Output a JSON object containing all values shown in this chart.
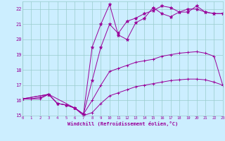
{
  "xlabel": "Windchill (Refroidissement éolien,°C)",
  "bg_color": "#cceeff",
  "grid_color": "#99cccc",
  "line_color": "#990099",
  "x_min": 0,
  "x_max": 23,
  "y_min": 15,
  "y_max": 22.5,
  "yticks": [
    15,
    16,
    17,
    18,
    19,
    20,
    21,
    22
  ],
  "xticks": [
    0,
    1,
    2,
    3,
    4,
    5,
    6,
    7,
    8,
    9,
    10,
    11,
    12,
    13,
    14,
    15,
    16,
    17,
    18,
    19,
    20,
    21,
    22,
    23
  ],
  "series1_x": [
    0,
    1,
    2,
    3,
    4,
    5,
    6,
    7,
    8,
    9,
    10,
    11,
    12,
    13,
    14,
    15,
    16,
    17,
    18,
    19,
    20,
    21,
    22,
    23
  ],
  "series1_y": [
    16.1,
    16.1,
    16.1,
    16.4,
    15.8,
    15.7,
    15.5,
    15.0,
    15.2,
    15.8,
    16.3,
    16.5,
    16.7,
    16.9,
    17.0,
    17.1,
    17.2,
    17.3,
    17.35,
    17.4,
    17.4,
    17.35,
    17.2,
    17.0
  ],
  "series2_x": [
    0,
    1,
    2,
    3,
    4,
    5,
    6,
    7,
    8,
    9,
    10,
    11,
    12,
    13,
    14,
    15,
    16,
    17,
    18,
    19,
    20,
    21,
    22,
    23
  ],
  "series2_y": [
    16.1,
    16.1,
    16.2,
    16.4,
    15.8,
    15.7,
    15.5,
    15.1,
    16.0,
    17.0,
    17.9,
    18.1,
    18.3,
    18.5,
    18.6,
    18.7,
    18.9,
    19.0,
    19.1,
    19.15,
    19.2,
    19.1,
    18.9,
    17.0
  ],
  "series3_x": [
    0,
    3,
    4,
    5,
    6,
    7,
    8,
    9,
    10,
    11,
    12,
    13,
    14,
    15,
    16,
    17,
    18,
    19,
    20,
    21,
    22,
    23
  ],
  "series3_y": [
    16.1,
    16.4,
    15.8,
    15.7,
    15.5,
    15.1,
    19.5,
    21.0,
    22.3,
    20.3,
    20.0,
    21.1,
    21.4,
    22.1,
    21.7,
    21.5,
    21.8,
    21.8,
    22.2,
    21.8,
    21.7,
    21.7
  ],
  "series4_x": [
    0,
    3,
    6,
    7,
    8,
    9,
    10,
    11,
    12,
    13,
    14,
    15,
    16,
    17,
    18,
    19,
    20,
    21,
    22,
    23
  ],
  "series4_y": [
    16.1,
    16.4,
    15.5,
    15.1,
    17.3,
    19.5,
    21.0,
    20.4,
    21.2,
    21.4,
    21.7,
    21.9,
    22.2,
    22.1,
    21.8,
    22.0,
    22.0,
    21.8,
    21.7,
    21.7
  ]
}
